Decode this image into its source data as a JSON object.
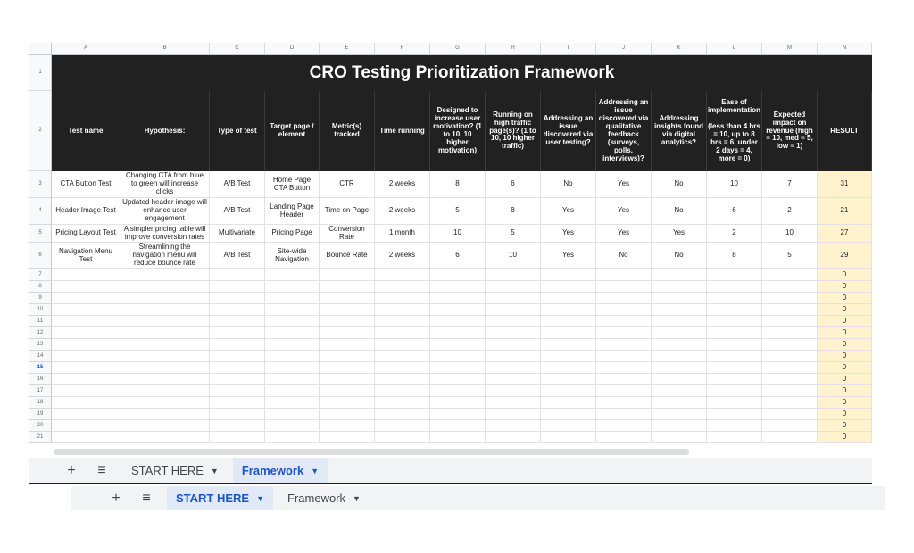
{
  "columns": [
    "A",
    "B",
    "C",
    "D",
    "E",
    "F",
    "G",
    "H",
    "I",
    "J",
    "K",
    "L",
    "M",
    "N"
  ],
  "row_numbers": [
    "1",
    "2",
    "3",
    "4",
    "5",
    "6",
    "7",
    "8",
    "9",
    "10",
    "11",
    "12",
    "13",
    "14",
    "15",
    "16",
    "17",
    "18",
    "19",
    "20",
    "21"
  ],
  "title": "CRO Testing Prioritization Framework",
  "headers": [
    "Test name",
    "Hypothesis:",
    "Type of test",
    "Target page / element",
    "Metric(s) tracked",
    "Time running",
    "Designed to increase user motivation? (1 to 10, 10 higher motivation)",
    "Running on high traffic page(s)? (1 to 10, 10 higher traffic)",
    "Addressing an issue discovered via user testing?",
    "Addressing an issue discovered via qualitative feedback (surveys, polls, interviews)?",
    "Addressing insights found via digital analytics?",
    "Ease of implementation\n\n(less than 4 hrs = 10, up to 8 hrs = 6, under 2 days = 4, more = 0)",
    "Expected impact on revenue (high = 10, med = 5, low = 1)",
    "RESULT"
  ],
  "rows": [
    [
      "CTA Button Test",
      "Changing CTA from blue to green will increase clicks",
      "A/B Test",
      "Home Page CTA Button",
      "CTR",
      "2 weeks",
      8,
      6,
      "No",
      "Yes",
      "No",
      10,
      7,
      31
    ],
    [
      "Header Image Test",
      "Updated header image will enhance user engagement",
      "A/B Test",
      "Landing Page Header",
      "Time on Page",
      "2 weeks",
      5,
      8,
      "Yes",
      "Yes",
      "No",
      6,
      2,
      21
    ],
    [
      "Pricing Layout Test",
      "A simpler pricing table will improve conversion rates",
      "Multivariate",
      "Pricing Page",
      "Conversion Rate",
      "1 month",
      10,
      5,
      "Yes",
      "Yes",
      "Yes",
      2,
      10,
      27
    ],
    [
      "Navigation Menu Test",
      "Streamlining the navigation menu will reduce bounce rate",
      "A/B Test",
      "Site-wide Navigation",
      "Bounce Rate",
      "2 weeks",
      6,
      10,
      "Yes",
      "No",
      "No",
      8,
      5,
      29
    ]
  ],
  "empty_results": [
    0,
    0,
    0,
    0,
    0,
    0,
    0,
    0,
    0,
    0,
    0,
    0,
    0,
    0,
    0
  ],
  "tab_bars": [
    {
      "tabs": [
        "START HERE",
        "Framework"
      ],
      "active": 1
    },
    {
      "tabs": [
        "START HERE",
        "Framework"
      ],
      "active": 0
    }
  ]
}
